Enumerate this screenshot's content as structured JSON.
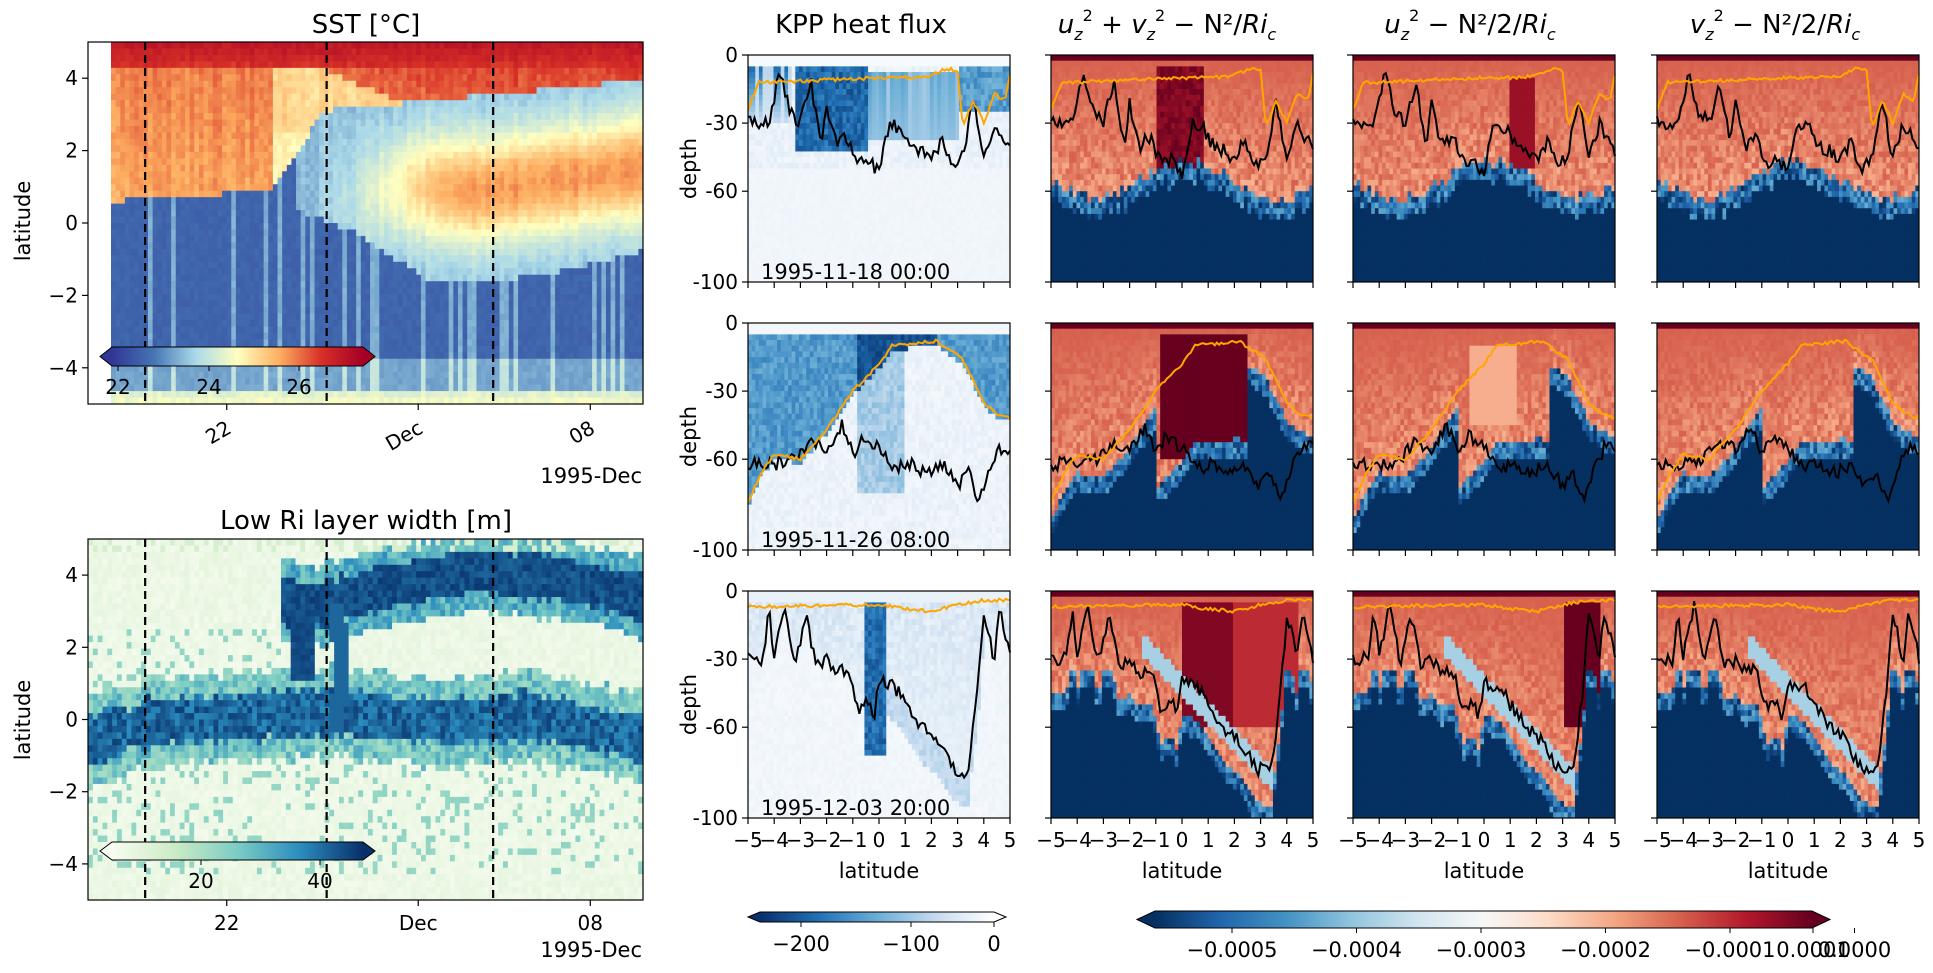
{
  "figure": {
    "date_suffix": "1995-Dec",
    "colorbars": {
      "sst": {
        "ticks": [
          "22",
          "24",
          "26"
        ],
        "range": [
          21,
          27.5
        ],
        "colors": [
          "#313695",
          "#4575b4",
          "#abd9e9",
          "#ffffbf",
          "#fdae61",
          "#d73027",
          "#a50026"
        ]
      },
      "lowri": {
        "ticks": [
          "20",
          "40"
        ],
        "range": [
          5,
          52
        ],
        "colors": [
          "#f7fcf0",
          "#ccebc5",
          "#7bccc4",
          "#2b8cbe",
          "#08306b"
        ]
      },
      "kpp": {
        "ticks": [
          "−200",
          "−100",
          "0"
        ],
        "range": [
          -270,
          5
        ],
        "colors": [
          "#08306b",
          "#2171b5",
          "#6baed6",
          "#c6dbef",
          "#ffffff"
        ]
      },
      "shear": {
        "ticks": [
          "−0.0005",
          "−0.0004",
          "−0.0003",
          "−0.0002",
          "−0.0001",
          "0.0000",
          "0.0001"
        ],
        "range": [
          -0.0005,
          0.0001
        ],
        "colors": [
          "#053061",
          "#2166ac",
          "#4393c3",
          "#92c5de",
          "#d1e5f0",
          "#f7f7f7",
          "#fddbc7",
          "#f4a582",
          "#d6604d",
          "#b2182b",
          "#67001f"
        ]
      }
    },
    "line_colors": {
      "mld": "#ffa500",
      "boundary": "#000000",
      "marker": "#000000"
    }
  },
  "chart_data": [
    {
      "type": "heatmap",
      "title": "SST [°C]",
      "xlabel": "",
      "ylabel": "latitude",
      "ylim": [
        -5,
        5
      ],
      "yticks": [
        "4",
        "2",
        "0",
        "−2",
        "−4"
      ],
      "xticks": [
        "22",
        "Dec",
        "08"
      ],
      "xaxis": "time",
      "vertical_markers": [
        "1995-11-18 00:00",
        "1995-11-26 08:00",
        "1995-12-03 20:00"
      ]
    },
    {
      "type": "heatmap",
      "title": "Low Ri layer width [m]",
      "xlabel": "",
      "ylabel": "latitude",
      "ylim": [
        -5,
        5
      ],
      "yticks": [
        "4",
        "2",
        "0",
        "−2",
        "−4"
      ],
      "xticks": [
        "22",
        "Dec",
        "08"
      ],
      "xaxis": "time",
      "vertical_markers": [
        "1995-11-18 00:00",
        "1995-11-26 08:00",
        "1995-12-03 20:00"
      ]
    },
    {
      "type": "heatmap",
      "panel_grid": "3 rows (times) x 4 columns (fields)",
      "columns": [
        "KPP heat flux",
        "u_z^2 + v_z^2 - N²/Ri_c",
        "u_z^2 - N²/2/Ri_c",
        "v_z^2 - N²/2/Ri_c"
      ],
      "times": [
        "1995-11-18 00:00",
        "1995-11-26 08:00",
        "1995-12-03 20:00"
      ],
      "xlabel": "latitude",
      "ylabel": "depth",
      "xlim": [
        -5,
        5
      ],
      "ylim": [
        -100,
        0
      ],
      "xticks": [
        "−5",
        "−4",
        "−3",
        "−2",
        "−1",
        "0",
        "1",
        "2",
        "3",
        "4",
        "5"
      ],
      "yticks": [
        "0",
        "-30",
        "-60",
        "-100"
      ],
      "lines": [
        "mixed layer depth (orange)",
        "low-Ri layer base (black)"
      ]
    }
  ]
}
